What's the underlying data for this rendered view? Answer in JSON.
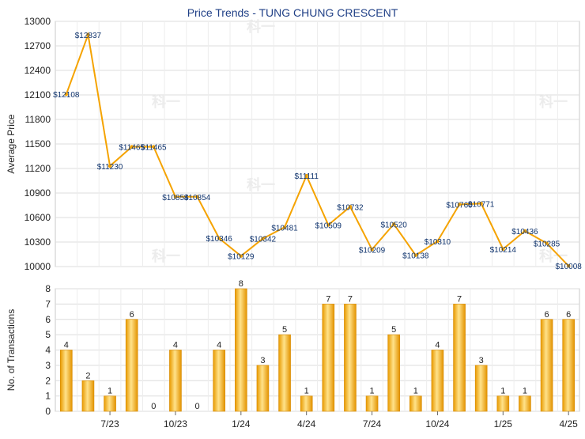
{
  "title": "Price Trends - TUNG CHUNG CRESCENT",
  "watermark": "科一",
  "chart_data": [
    {
      "type": "line",
      "ylabel": "Average Price",
      "ylim": [
        10000,
        13000
      ],
      "yticks": [
        10000,
        10300,
        10600,
        10900,
        11200,
        11500,
        11800,
        12100,
        12400,
        12700,
        13000
      ],
      "grid": true,
      "color": "#f5a300",
      "series": [
        {
          "values": [
            12108,
            12837,
            11230,
            11465,
            11465,
            10854,
            10854,
            10346,
            10129,
            10342,
            10481,
            11111,
            10509,
            10732,
            10209,
            10520,
            10138,
            10310,
            10760,
            10771,
            10214,
            10436,
            10285,
            10008
          ],
          "labels": [
            "$12108",
            "$12837",
            "$11230",
            "$11465",
            "$11465",
            "$10854",
            "$10854",
            "$10346",
            "$10129",
            "$10342",
            "$10481",
            "$11111",
            "$10509",
            "$10732",
            "$10209",
            "$10520",
            "$10138",
            "$10310",
            "$10760",
            "$10771",
            "$10214",
            "$10436",
            "$10285",
            "$10008"
          ]
        }
      ]
    },
    {
      "type": "bar",
      "ylabel": "No. of Transactions",
      "ylim": [
        0,
        8
      ],
      "yticks": [
        0,
        1,
        2,
        3,
        4,
        5,
        6,
        7,
        8
      ],
      "grid": true,
      "color": "#f5a300",
      "xticks": [
        {
          "index": 2,
          "label": "7/23"
        },
        {
          "index": 5,
          "label": "10/23"
        },
        {
          "index": 8,
          "label": "1/24"
        },
        {
          "index": 11,
          "label": "4/24"
        },
        {
          "index": 14,
          "label": "7/24"
        },
        {
          "index": 17,
          "label": "10/24"
        },
        {
          "index": 20,
          "label": "1/25"
        },
        {
          "index": 23,
          "label": "4/25"
        }
      ],
      "values": [
        4,
        2,
        1,
        6,
        0,
        4,
        0,
        4,
        8,
        3,
        5,
        1,
        7,
        7,
        1,
        5,
        1,
        4,
        7,
        3,
        1,
        1,
        6,
        6
      ],
      "labels": [
        "4",
        "2",
        "1",
        "6",
        "0",
        "4",
        "0",
        "4",
        "8",
        "3",
        "5",
        "1",
        "7",
        "7",
        "1",
        "5",
        "1",
        "4",
        "7",
        "3",
        "1",
        "1",
        "6",
        "6"
      ]
    }
  ]
}
